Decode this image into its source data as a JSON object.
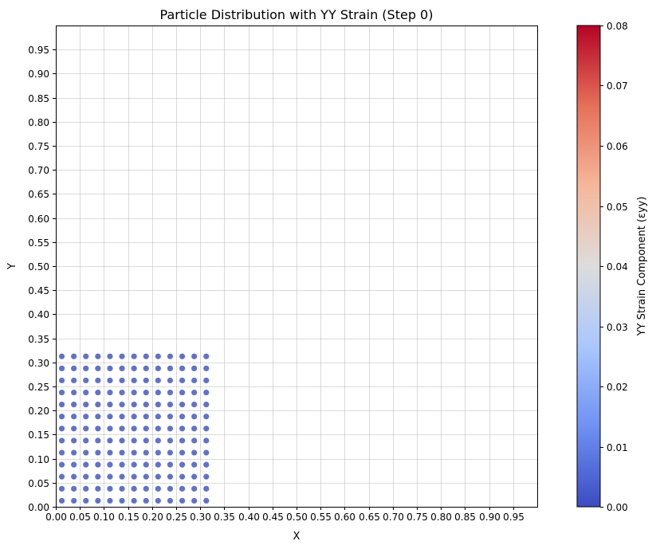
{
  "chart_data": {
    "type": "scatter",
    "title": "Particle Distribution with YY Strain (Step 0)",
    "xlabel": "X",
    "ylabel": "Y",
    "xlim": [
      0.0,
      1.0
    ],
    "ylim": [
      0.0,
      1.0
    ],
    "grid": true,
    "x_ticks": [
      "0.00",
      "0.05",
      "0.10",
      "0.15",
      "0.20",
      "0.25",
      "0.30",
      "0.35",
      "0.40",
      "0.45",
      "0.50",
      "0.55",
      "0.60",
      "0.65",
      "0.70",
      "0.75",
      "0.80",
      "0.85",
      "0.90",
      "0.95"
    ],
    "y_ticks": [
      "0.00",
      "0.05",
      "0.10",
      "0.15",
      "0.20",
      "0.25",
      "0.30",
      "0.35",
      "0.40",
      "0.45",
      "0.50",
      "0.55",
      "0.60",
      "0.65",
      "0.70",
      "0.75",
      "0.80",
      "0.85",
      "0.90",
      "0.95"
    ],
    "particles": {
      "x_values": [
        0.0125,
        0.0375,
        0.0625,
        0.0875,
        0.1125,
        0.1375,
        0.1625,
        0.1875,
        0.2125,
        0.2375,
        0.2625,
        0.2875,
        0.3125
      ],
      "y_values": [
        0.0125,
        0.0375,
        0.0625,
        0.0875,
        0.1125,
        0.1375,
        0.1625,
        0.1875,
        0.2125,
        0.2375,
        0.2625,
        0.2875,
        0.3125
      ],
      "strain_eyy": 0.0,
      "color": "#5a6ac4"
    },
    "colorbar": {
      "label": "YY Strain Component (εyy)",
      "range": [
        0.0,
        0.08
      ],
      "ticks": [
        "0.00",
        "0.01",
        "0.02",
        "0.03",
        "0.04",
        "0.05",
        "0.06",
        "0.07",
        "0.08"
      ],
      "colormap": "coolwarm",
      "colormap_stops": [
        "#3b4cc0",
        "#6f91f3",
        "#aac7fd",
        "#dddcdc",
        "#f6b79b",
        "#e57058",
        "#b40426"
      ]
    }
  }
}
